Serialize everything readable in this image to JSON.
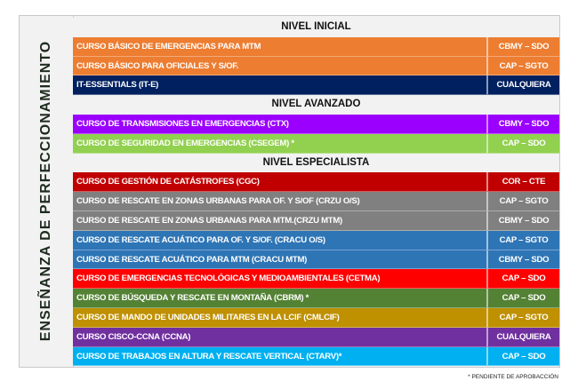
{
  "side_title": "ENSEÑANZA DE PERFECCIONAMIENTO",
  "sections": [
    {
      "title": "NIVEL INICIAL",
      "courses": [
        {
          "name": "CURSO BÁSICO DE EMERGENCIAS PARA MTM",
          "rank": "CBMY – SDO",
          "color": "#ed7d31"
        },
        {
          "name": "CURSO BÁSICO PARA OFICIALES Y S/OF.",
          "rank": "CAP – SGTO",
          "color": "#ed7d31"
        },
        {
          "name": "IT-ESSENTIALS (IT-E)",
          "rank": "CUALQUIERA",
          "color": "#002060"
        }
      ]
    },
    {
      "title": "NIVEL AVANZADO",
      "courses": [
        {
          "name": "CURSO DE TRANSMISIONES EN EMERGENCIAS (CTX)",
          "rank": "CBMY – SDO",
          "color": "#9b00ff"
        },
        {
          "name": "CURSO DE SEGURIDAD EN EMERGENCIAS (CSEGEM) *",
          "rank": "CAP – SDO",
          "color": "#92d050"
        }
      ]
    },
    {
      "title": "NIVEL ESPECIALISTA",
      "courses": [
        {
          "name": "CURSO DE GESTIÓN DE CATÁSTROFES (CGC)",
          "rank": "COR – CTE",
          "color": "#c00000"
        },
        {
          "name": "CURSO DE RESCATE EN ZONAS URBANAS PARA OF. Y S/OF (CRZU O/S)",
          "rank": "CAP – SGTO",
          "color": "#808080"
        },
        {
          "name": "CURSO DE RESCATE EN ZONAS URBANAS PARA MTM.(CRZU MTM)",
          "rank": "CBMY – SDO",
          "color": "#808080"
        },
        {
          "name": "CURSO DE RESCATE ACUÁTICO PARA OF. Y S/OF. (CRACU O/S)",
          "rank": "CAP – SGTO",
          "color": "#2e75b6"
        },
        {
          "name": "CURSO DE RESCATE ACUÁTICO PARA MTM (CRACU MTM)",
          "rank": "CBMY – SDO",
          "color": "#2e75b6"
        },
        {
          "name": "CURSO DE EMERGENCIAS TECNOLÓGICAS Y MEDIOAMBIENTALES (CETMA)",
          "rank": "CAP – SDO",
          "color": "#ff0000"
        },
        {
          "name": "CURSO DE BÚSQUEDA Y RESCATE EN MONTAÑA (CBRM) *",
          "rank": "CAP – SDO",
          "color": "#548235"
        },
        {
          "name": "CURSO DE MANDO DE UNIDADES MILITARES EN LA LCIF (CMLCIF)",
          "rank": "CAP – SGTO",
          "color": "#bf9000"
        },
        {
          "name": "CURSO CISCO-CCNA (CCNA)",
          "rank": "CUALQUIERA",
          "color": "#7030a0"
        },
        {
          "name": "CURSO DE TRABAJOS EN ALTURA Y RESCATE VERTICAL  (CTARV)*",
          "rank": "CAP – SDO",
          "color": "#00b0f0"
        }
      ]
    }
  ],
  "footnote": "* PENDIENTE DE APROBACCIÓN"
}
